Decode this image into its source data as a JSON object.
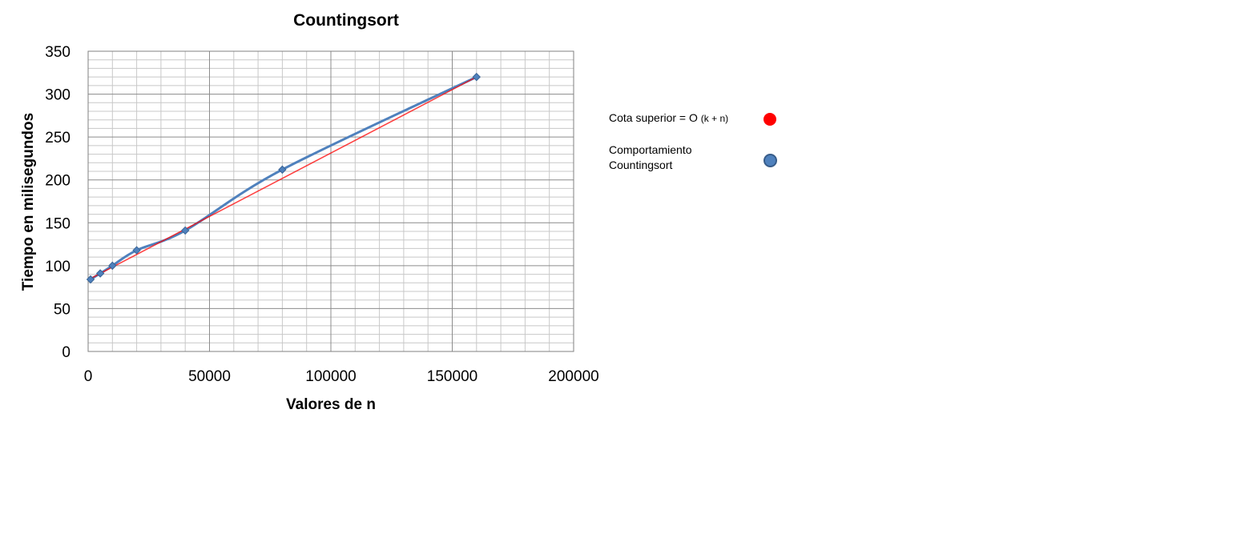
{
  "chart_data": {
    "type": "line",
    "title": "Countingsort",
    "xlabel": "Valores de n",
    "ylabel": "Tiempo en milisegundos",
    "xlim": [
      0,
      200000
    ],
    "ylim": [
      0,
      350
    ],
    "x_ticks": [
      "0",
      "50000",
      "100000",
      "150000",
      "200000"
    ],
    "y_ticks": [
      "0",
      "50",
      "100",
      "150",
      "200",
      "250",
      "300",
      "350"
    ],
    "grid": true,
    "legend_position": "right",
    "series": [
      {
        "name": "Cota superior = O (k + n)",
        "color": "#ff0000",
        "marker": "none",
        "x": [
          1000,
          160000
        ],
        "y": [
          85,
          320
        ]
      },
      {
        "name": "Comportamiento Countingsort",
        "color": "#4f81bd",
        "marker": "diamond",
        "x": [
          1000,
          5000,
          10000,
          20000,
          40000,
          80000,
          160000
        ],
        "y": [
          84,
          91,
          100,
          118,
          141,
          212,
          320
        ]
      }
    ]
  },
  "legend": {
    "item1_main": "Cota superior = O",
    "item1_small": "(k + n)",
    "item2_line1": "Comportamiento",
    "item2_line2": "Countingsort",
    "item1_color": "#ff0000",
    "item2_color": "#4f81bd"
  }
}
